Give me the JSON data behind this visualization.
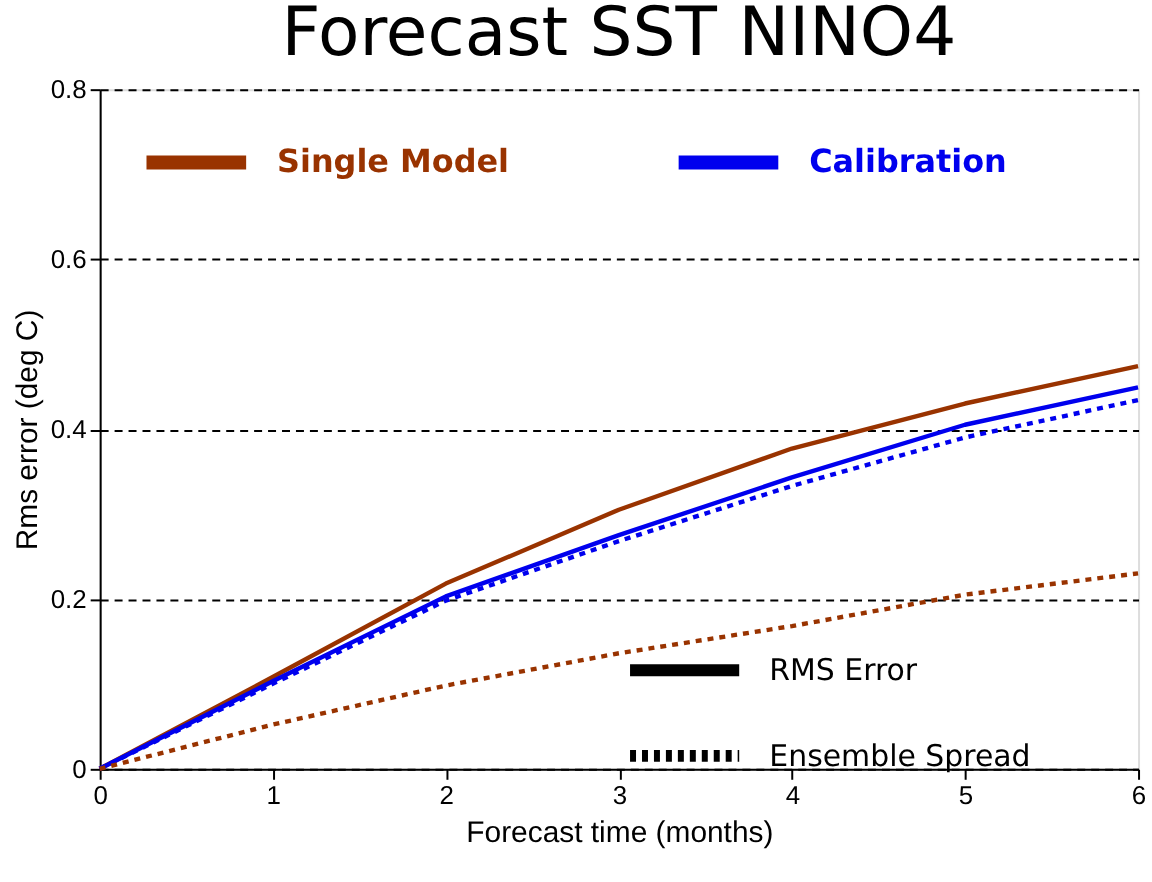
{
  "chart_data": {
    "type": "line",
    "title": "Forecast SST NINO4",
    "xlabel": "Forecast time (months)",
    "ylabel": "Rms error (deg C)",
    "x": [
      0,
      1,
      2,
      3,
      4,
      5,
      6
    ],
    "xlim": [
      0,
      6
    ],
    "xticks": [
      0,
      1,
      2,
      3,
      4,
      5,
      6
    ],
    "ylim": [
      0,
      0.8
    ],
    "yticks": [
      {
        "value": 0,
        "label": "0"
      },
      {
        "value": 0.2,
        "label": "0.2"
      },
      {
        "value": 0.4,
        "label": "0.4"
      },
      {
        "value": 0.6,
        "label": "0.6"
      },
      {
        "value": 0.8,
        "label": "0.8"
      }
    ],
    "grid": "y",
    "legend": "top",
    "marker": "none",
    "series": [
      {
        "name": "Single Model",
        "color": "#993300",
        "line_style": "solid",
        "values": [
          0,
          0.108,
          0.218,
          0.305,
          0.377,
          0.43,
          0.474
        ]
      },
      {
        "name": "Calibration",
        "color": "#0000ee",
        "line_style": "solid",
        "values": [
          0,
          0.103,
          0.203,
          0.275,
          0.343,
          0.405,
          0.449
        ]
      },
      {
        "color": "#0000ee",
        "line_style": "dotted",
        "values": [
          0,
          0.1,
          0.198,
          0.268,
          0.333,
          0.39,
          0.434
        ]
      },
      {
        "color": "#993300",
        "line_style": "dotted",
        "values": [
          0,
          0.052,
          0.098,
          0.136,
          0.168,
          0.205,
          0.23
        ]
      }
    ],
    "annotations": [
      "RMS Error",
      "Ensemble Spread"
    ]
  }
}
